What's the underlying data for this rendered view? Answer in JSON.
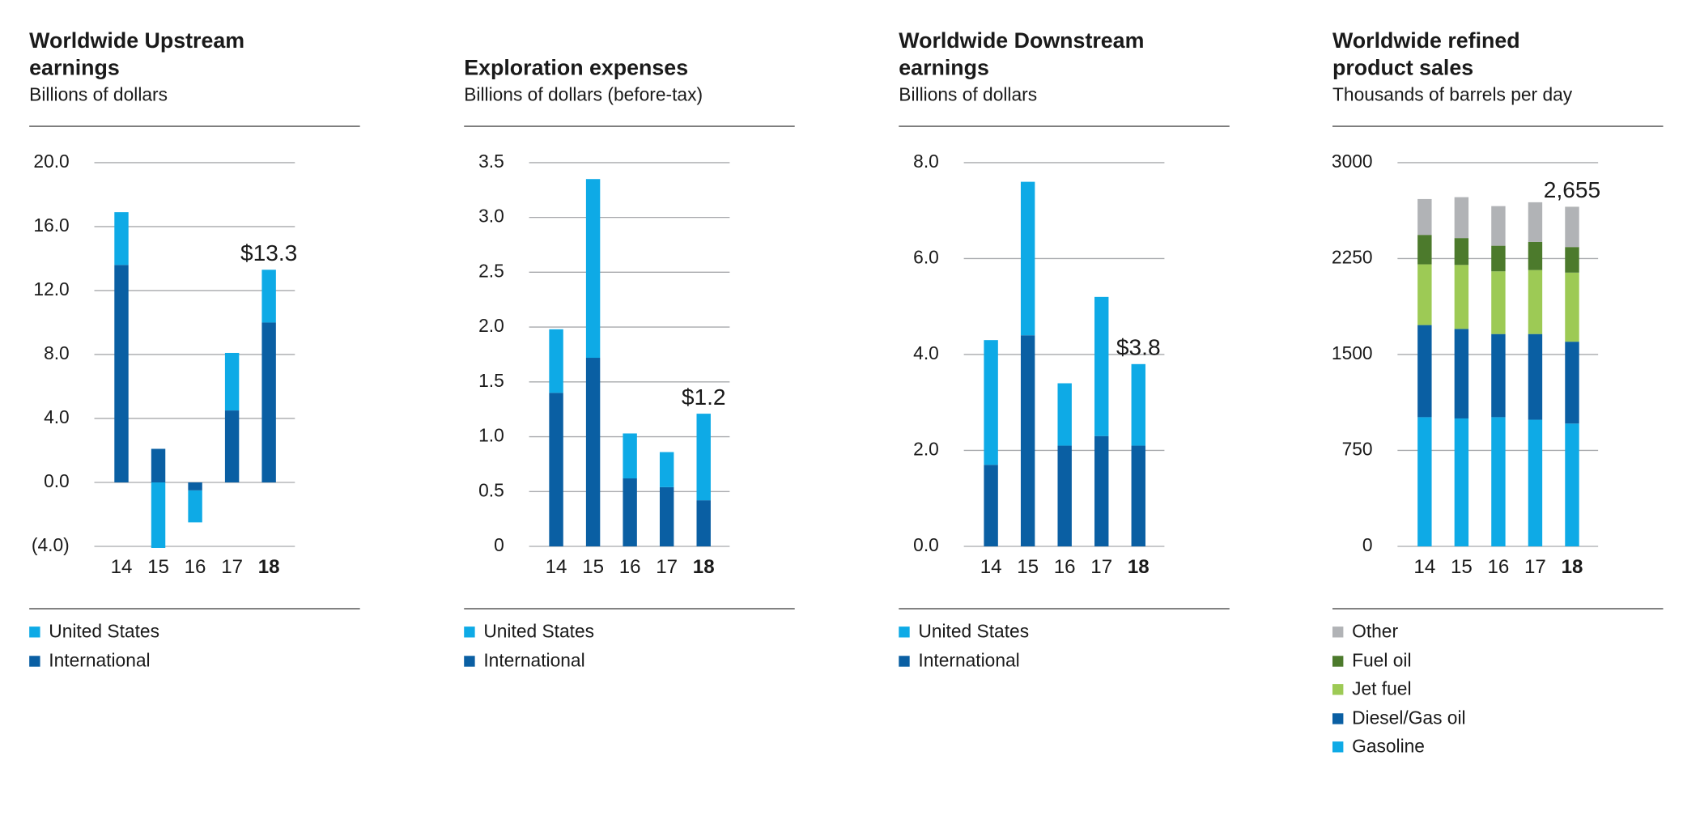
{
  "chart_data": [
    {
      "type": "bar",
      "stacked": true,
      "title": "Worldwide Upstream earnings",
      "subtitle": "Billions of dollars",
      "categories": [
        "14",
        "15",
        "16",
        "17",
        "18"
      ],
      "series": [
        {
          "name": "United States",
          "color": "#0eaae6",
          "values": [
            3.3,
            -4.1,
            -2.0,
            3.6,
            3.3
          ]
        },
        {
          "name": "International",
          "color": "#0a5fa3",
          "values": [
            13.6,
            2.1,
            -0.5,
            4.5,
            10.0
          ]
        }
      ],
      "ylim": [
        -4,
        20
      ],
      "yticks": [
        {
          "value": -4,
          "label": "(4.0)"
        },
        {
          "value": 0,
          "label": "0.0"
        },
        {
          "value": 4,
          "label": "4.0"
        },
        {
          "value": 8,
          "label": "8.0"
        },
        {
          "value": 12,
          "label": "12.0"
        },
        {
          "value": 16,
          "label": "16.0"
        },
        {
          "value": 20,
          "label": "20.0"
        }
      ],
      "grid": true,
      "annotation": "$13.3"
    },
    {
      "type": "bar",
      "stacked": true,
      "title": "Exploration expenses",
      "subtitle": "Billions of dollars (before-tax)",
      "categories": [
        "14",
        "15",
        "16",
        "17",
        "18"
      ],
      "series": [
        {
          "name": "United States",
          "color": "#0eaae6",
          "values": [
            0.58,
            1.63,
            0.41,
            0.32,
            0.79
          ]
        },
        {
          "name": "International",
          "color": "#0a5fa3",
          "values": [
            1.4,
            1.72,
            0.62,
            0.54,
            0.42
          ]
        }
      ],
      "ylim": [
        0,
        3.5
      ],
      "yticks": [
        0,
        0.5,
        {
          "value": 1,
          "label": "1.0"
        },
        1.5,
        {
          "value": 2,
          "label": "2.0"
        },
        2.5,
        {
          "value": 3,
          "label": "3.0"
        },
        3.5
      ],
      "grid": true,
      "annotation": "$1.2"
    },
    {
      "type": "bar",
      "stacked": true,
      "title": "Worldwide Downstream earnings",
      "subtitle": "Billions of dollars",
      "categories": [
        "14",
        "15",
        "16",
        "17",
        "18"
      ],
      "series": [
        {
          "name": "United States",
          "color": "#0eaae6",
          "values": [
            2.6,
            3.2,
            1.3,
            2.9,
            1.7
          ]
        },
        {
          "name": "International",
          "color": "#0a5fa3",
          "values": [
            1.7,
            4.4,
            2.1,
            2.3,
            2.1
          ]
        }
      ],
      "ylim": [
        0,
        8
      ],
      "yticks": [
        {
          "value": 0,
          "label": "0.0"
        },
        {
          "value": 2,
          "label": "2.0"
        },
        {
          "value": 4,
          "label": "4.0"
        },
        {
          "value": 6,
          "label": "6.0"
        },
        {
          "value": 8,
          "label": "8.0"
        }
      ],
      "grid": true,
      "annotation": "$3.8"
    },
    {
      "type": "bar",
      "stacked": true,
      "title": "Worldwide refined product sales",
      "subtitle": "Thousands of barrels per day",
      "categories": [
        "14",
        "15",
        "16",
        "17",
        "18"
      ],
      "series": [
        {
          "name": "Other",
          "color": "#b1b3b6",
          "values": [
            280,
            320,
            310,
            310,
            315
          ]
        },
        {
          "name": "Fuel oil",
          "color": "#4c7a2c",
          "values": [
            230,
            210,
            200,
            220,
            200
          ]
        },
        {
          "name": "Jet fuel",
          "color": "#9dca55",
          "values": [
            475,
            500,
            490,
            500,
            540
          ]
        },
        {
          "name": "Diesel/Gas oil",
          "color": "#0a5fa3",
          "values": [
            720,
            700,
            650,
            670,
            640
          ]
        },
        {
          "name": "Gasoline",
          "color": "#0eaae6",
          "values": [
            1010,
            1000,
            1010,
            990,
            960
          ]
        }
      ],
      "ylim": [
        0,
        3000
      ],
      "yticks": [
        0,
        750,
        1500,
        2250,
        3000
      ],
      "grid": true,
      "annotation": "2,655"
    }
  ]
}
